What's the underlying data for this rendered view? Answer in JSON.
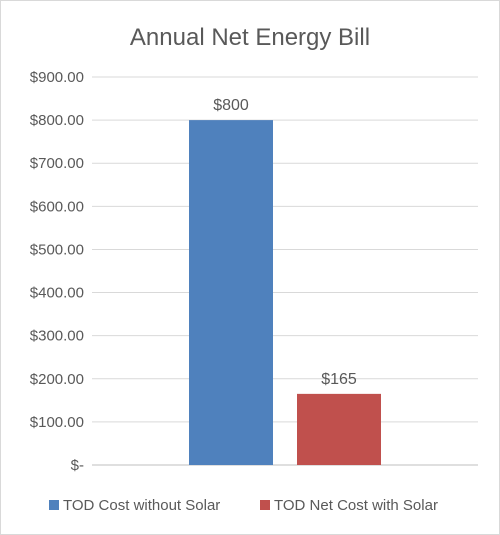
{
  "chart_data": {
    "type": "bar",
    "title": "Annual Net Energy Bill",
    "xlabel": "",
    "ylabel": "",
    "ylim": [
      0,
      900
    ],
    "yticks": [
      0,
      100,
      200,
      300,
      400,
      500,
      600,
      700,
      800,
      900
    ],
    "ytick_labels": [
      "$-",
      "$100.00",
      "$200.00",
      "$300.00",
      "$400.00",
      "$500.00",
      "$600.00",
      "$700.00",
      "$800.00",
      "$900.00"
    ],
    "grid": true,
    "legend_position": "bottom",
    "series": [
      {
        "name": "TOD Cost without Solar",
        "values": [
          800
        ],
        "data_label": "$800",
        "color": "#4f81bd"
      },
      {
        "name": "TOD Net Cost with Solar",
        "values": [
          165
        ],
        "data_label": "$165",
        "color": "#c0504d"
      }
    ]
  }
}
